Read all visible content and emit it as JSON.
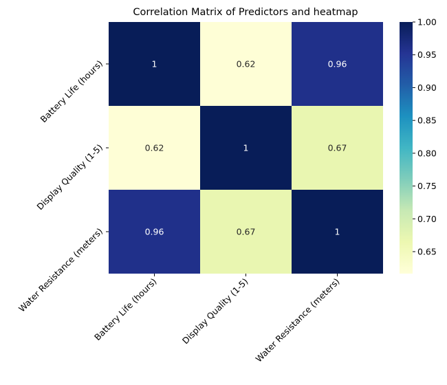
{
  "chart_data": {
    "type": "heatmap",
    "title": "Correlation Matrix of Predictors and heatmap",
    "row_labels": [
      "Battery Life (hours)",
      "Display Quality (1-5)",
      "Water Resistance (meters)"
    ],
    "col_labels": [
      "Battery Life (hours)",
      "Display Quality (1-5)",
      "Water Resistance (meters)"
    ],
    "values": [
      [
        1,
        0.62,
        0.96
      ],
      [
        0.62,
        1,
        0.67
      ],
      [
        0.96,
        0.67,
        1
      ]
    ],
    "value_labels": [
      [
        "1",
        "0.62",
        "0.96"
      ],
      [
        "0.62",
        "1",
        "0.67"
      ],
      [
        "0.96",
        "0.67",
        "1"
      ]
    ],
    "colormap": "YlGnBu",
    "vmin": 0.6165,
    "vmax": 1.0,
    "colorbar": {
      "ticks": [
        0.65,
        0.7,
        0.75,
        0.8,
        0.85,
        0.9,
        0.95,
        1.0
      ],
      "tick_labels": [
        "0.65",
        "0.70",
        "0.75",
        "0.80",
        "0.85",
        "0.90",
        "0.95",
        "1.00"
      ]
    },
    "annotation_colors": {
      "dark_text": "#262626",
      "light_text": "#ffffff"
    },
    "colormap_stops": [
      "#ffffd9",
      "#edf8b1",
      "#c7e9b4",
      "#7fcdbb",
      "#41b6c4",
      "#1d91c0",
      "#225ea8",
      "#253494",
      "#081d58"
    ]
  }
}
